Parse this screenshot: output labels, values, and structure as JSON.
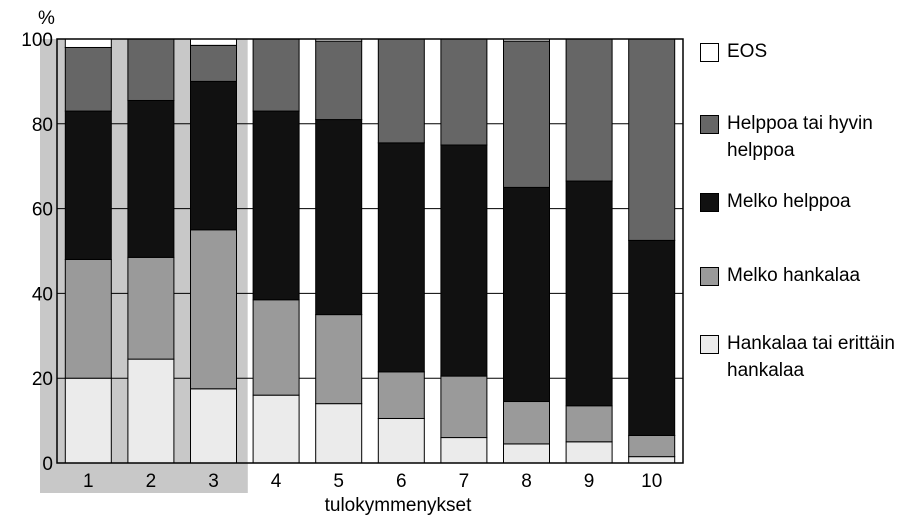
{
  "chart_data": {
    "type": "bar",
    "stacked": true,
    "ylabel": "%",
    "xlabel": "tulokymmenykset",
    "ylim": [
      0,
      100
    ],
    "yticks": [
      0,
      20,
      40,
      60,
      80,
      100
    ],
    "grid": true,
    "legend_position": "right",
    "categories": [
      "1",
      "2",
      "3",
      "4",
      "5",
      "6",
      "7",
      "8",
      "9",
      "10"
    ],
    "highlighted_categories": [
      "1",
      "2",
      "3"
    ],
    "colors": {
      "highlight_band": "#c8c8c8",
      "axes": "#000000"
    },
    "series": [
      {
        "name": "Hankalaa tai erittäin hankalaa",
        "color": "#ebebeb",
        "values": [
          20,
          24.5,
          17.5,
          16,
          14,
          10.5,
          6,
          4.5,
          5,
          1.5
        ]
      },
      {
        "name": "Melko hankalaa",
        "color": "#9a9a9a",
        "values": [
          28,
          24,
          37.5,
          22.5,
          21,
          11,
          14.5,
          10,
          8.5,
          5
        ]
      },
      {
        "name": "Melko helppoa",
        "color": "#111111",
        "values": [
          35,
          37,
          35,
          44.5,
          46,
          54,
          54.5,
          50.5,
          53,
          46
        ]
      },
      {
        "name": "Helppoa tai hyvin helppoa",
        "color": "#666666",
        "values": [
          15,
          14.5,
          8.5,
          17,
          18.5,
          24.5,
          25,
          34.5,
          33.5,
          47.5
        ]
      },
      {
        "name": "EOS",
        "color": "#ffffff",
        "values": [
          2,
          0,
          1.5,
          0,
          0.5,
          0,
          0,
          0.5,
          0,
          0
        ]
      }
    ]
  }
}
